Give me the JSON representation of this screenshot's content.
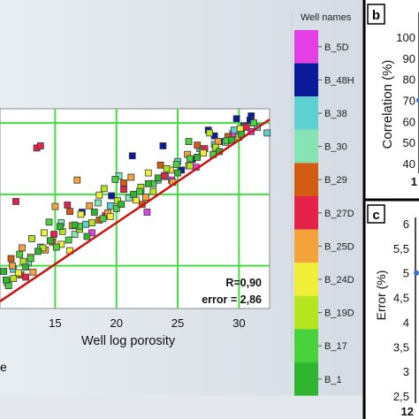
{
  "panel_labels": {
    "b": "b",
    "c": "c"
  },
  "legend": {
    "title": "Well names",
    "items": [
      {
        "name": "B_5D",
        "color": "#e43fe4"
      },
      {
        "name": "B_48H",
        "color": "#0a1a9a"
      },
      {
        "name": "B_38",
        "color": "#5ed0d2"
      },
      {
        "name": "B_30",
        "color": "#86e3b4"
      },
      {
        "name": "B_29",
        "color": "#d35a12"
      },
      {
        "name": "B_27D",
        "color": "#e5224a"
      },
      {
        "name": "B_25D",
        "color": "#f4a33a"
      },
      {
        "name": "B_24D",
        "color": "#f1ee3a"
      },
      {
        "name": "B_19D",
        "color": "#b5e51f"
      },
      {
        "name": "B_17",
        "color": "#49d23d"
      },
      {
        "name": "B_1",
        "color": "#2fb52f"
      }
    ]
  },
  "chart_data": [
    {
      "type": "scatter",
      "title": "",
      "xlabel": "Well log porosity",
      "ylabel": "",
      "xlim": [
        10.5,
        32.5
      ],
      "ylim": [
        4,
        32
      ],
      "xticks": [
        "15",
        "20",
        "25",
        "30"
      ],
      "grid": true,
      "grid_color": "#44dd44",
      "fit_line": {
        "x": [
          10.5,
          32.5
        ],
        "y": [
          5,
          30.5
        ],
        "color": "#cc1111"
      },
      "annotations": [
        "R=0,90",
        "error = 2,86"
      ],
      "series": [
        {
          "name": "B_5D",
          "points": [
            [
              22.5,
              17.5
            ],
            [
              26.5,
              23.8
            ],
            [
              29.5,
              28.5
            ],
            [
              18.0,
              14.6
            ],
            [
              31.0,
              28.8
            ],
            [
              24.5,
              22.0
            ]
          ]
        },
        {
          "name": "B_48H",
          "points": [
            [
              31.0,
              31.0
            ],
            [
              29.8,
              30.6
            ],
            [
              27.5,
              29.0
            ],
            [
              23.8,
              26.8
            ],
            [
              21.3,
              25.4
            ],
            [
              30.4,
              29.6
            ],
            [
              26.2,
              24.9
            ],
            [
              28.6,
              27.4
            ],
            [
              25.3,
              23.4
            ],
            [
              19.6,
              19.8
            ],
            [
              30.9,
              30.4
            ],
            [
              17.2,
              17.5
            ],
            [
              28.0,
              28.2
            ]
          ]
        },
        {
          "name": "B_38",
          "points": [
            [
              28.0,
              27.0
            ],
            [
              22.0,
              20.6
            ],
            [
              31.5,
              29.4
            ],
            [
              17.5,
              15.8
            ],
            [
              25.0,
              24.6
            ],
            [
              19.5,
              18.4
            ],
            [
              32.3,
              28.6
            ],
            [
              23.4,
              22.0
            ],
            [
              29.6,
              29.0
            ],
            [
              13.8,
              12.6
            ],
            [
              26.8,
              26.4
            ],
            [
              11.6,
              9.5
            ]
          ]
        },
        {
          "name": "B_30",
          "points": [
            [
              27.0,
              26.0
            ],
            [
              21.0,
              19.5
            ],
            [
              15.5,
              16.0
            ],
            [
              30.5,
              29.5
            ],
            [
              24.0,
              22.5
            ],
            [
              18.5,
              18.8
            ],
            [
              12.8,
              10.4
            ],
            [
              28.9,
              27.3
            ],
            [
              20.2,
              22.6
            ],
            [
              25.9,
              24.0
            ],
            [
              16.6,
              14.4
            ]
          ]
        },
        {
          "name": "B_29",
          "points": [
            [
              16.2,
              17.6
            ],
            [
              20.6,
              21.6
            ],
            [
              12.2,
              8.7
            ],
            [
              23.6,
              24.1
            ],
            [
              14.8,
              13.3
            ],
            [
              26.6,
              26.9
            ],
            [
              18.6,
              16.4
            ],
            [
              11.4,
              11.0
            ],
            [
              29.1,
              28.1
            ],
            [
              22.1,
              18.6
            ]
          ]
        },
        {
          "name": "B_27D",
          "points": [
            [
              13.5,
              26.5
            ],
            [
              13.8,
              26.8
            ],
            [
              11.8,
              19.0
            ],
            [
              16.0,
              18.5
            ],
            [
              20.6,
              20.7
            ],
            [
              14.9,
              14.4
            ],
            [
              23.9,
              22.6
            ],
            [
              12.6,
              8.4
            ],
            [
              27.2,
              26.4
            ],
            [
              19.1,
              17.0
            ],
            [
              30.6,
              29.4
            ]
          ]
        },
        {
          "name": "B_25D",
          "points": [
            [
              16.8,
              22.0
            ],
            [
              15.0,
              18.3
            ],
            [
              11.5,
              10.0
            ],
            [
              14.2,
              12.2
            ],
            [
              19.3,
              17.4
            ],
            [
              22.4,
              19.6
            ],
            [
              17.8,
              18.4
            ],
            [
              25.8,
              25.6
            ],
            [
              12.3,
              12.5
            ],
            [
              21.2,
              22.4
            ],
            [
              24.6,
              21.7
            ],
            [
              28.3,
              27.4
            ],
            [
              13.2,
              9.1
            ],
            [
              16.4,
              15.6
            ]
          ]
        },
        {
          "name": "B_24D",
          "points": [
            [
              12.0,
              9.0
            ],
            [
              15.5,
              13.0
            ],
            [
              19.5,
              16.9
            ],
            [
              13.0,
              11.2
            ],
            [
              17.1,
              17.2
            ],
            [
              21.6,
              19.2
            ],
            [
              14.1,
              14.6
            ],
            [
              24.4,
              23.4
            ],
            [
              11.1,
              7.6
            ],
            [
              18.6,
              19.9
            ],
            [
              27.1,
              25.8
            ],
            [
              16.2,
              12.1
            ],
            [
              22.6,
              23.0
            ],
            [
              30.1,
              29.2
            ]
          ]
        },
        {
          "name": "B_19D",
          "points": [
            [
              14.0,
              12.5
            ],
            [
              18.0,
              16.0
            ],
            [
              22.0,
              21.0
            ],
            [
              26.0,
              24.0
            ],
            [
              11.6,
              8.2
            ],
            [
              15.6,
              14.8
            ],
            [
              20.1,
              19.1
            ],
            [
              24.1,
              23.6
            ],
            [
              28.1,
              26.6
            ],
            [
              13.1,
              13.8
            ],
            [
              17.0,
              15.1
            ],
            [
              30.0,
              28.0
            ],
            [
              19.0,
              20.8
            ],
            [
              12.4,
              10.6
            ],
            [
              23.0,
              20.4
            ],
            [
              27.6,
              28.6
            ]
          ]
        },
        {
          "name": "B_17",
          "points": [
            [
              13.0,
              11.0
            ],
            [
              17.0,
              15.5
            ],
            [
              20.0,
              18.0
            ],
            [
              23.0,
              21.5
            ],
            [
              26.0,
              25.0
            ],
            [
              29.0,
              27.5
            ],
            [
              11.2,
              7.2
            ],
            [
              15.1,
              12.6
            ],
            [
              18.9,
              16.6
            ],
            [
              21.9,
              20.4
            ],
            [
              24.9,
              24.2
            ],
            [
              27.9,
              25.6
            ],
            [
              14.5,
              16.1
            ],
            [
              31.2,
              30.0
            ],
            [
              16.1,
              13.6
            ],
            [
              19.9,
              22.1
            ],
            [
              25.9,
              27.4
            ],
            [
              12.1,
              11.6
            ]
          ]
        },
        {
          "name": "B_1",
          "points": [
            [
              11.0,
              8.0
            ],
            [
              14.6,
              13.5
            ],
            [
              18.2,
              17.5
            ],
            [
              21.4,
              20.0
            ],
            [
              25.0,
              23.0
            ],
            [
              28.4,
              26.0
            ],
            [
              12.6,
              9.8
            ],
            [
              16.6,
              15.7
            ],
            [
              20.4,
              18.6
            ],
            [
              23.4,
              22.3
            ],
            [
              26.6,
              25.2
            ],
            [
              30.2,
              28.4
            ],
            [
              13.6,
              12.0
            ],
            [
              17.6,
              14.1
            ],
            [
              22.6,
              21.5
            ],
            [
              29.4,
              27.6
            ],
            [
              15.4,
              15.5
            ],
            [
              10.8,
              9.2
            ]
          ]
        }
      ]
    },
    {
      "type": "line",
      "panel": "b",
      "ylabel": "Correlation (%)",
      "ylim": [
        40,
        100
      ],
      "yticks": [
        "100",
        "90",
        "80",
        "70",
        "60",
        "50",
        "40"
      ],
      "xticks": [
        "1"
      ],
      "series": [
        {
          "values": [
            70
          ]
        }
      ]
    },
    {
      "type": "line",
      "panel": "c",
      "ylabel": "Error (%)",
      "ylim": [
        2.5,
        6
      ],
      "yticks": [
        "6",
        "5,5",
        "5",
        "4,5",
        "4",
        "3,5",
        "3",
        "2,5"
      ],
      "xticks": [
        "12"
      ],
      "series": [
        {
          "values": [
            5
          ]
        }
      ]
    }
  ]
}
